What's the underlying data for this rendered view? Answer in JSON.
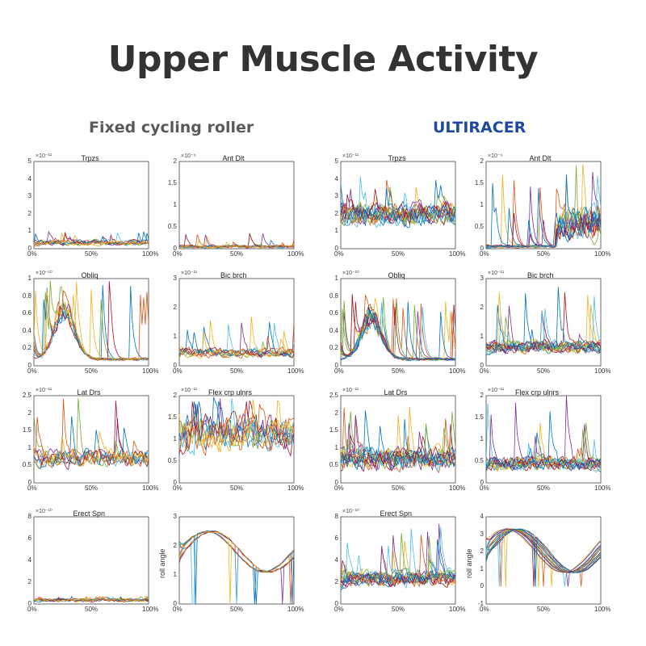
{
  "page": {
    "title": "Upper Muscle Activity",
    "left_column": "Fixed cycling roller",
    "right_column": "ULTIRACER"
  },
  "colors": {
    "title": "#333333",
    "left_header": "#5a5a5a",
    "right_header": "#1f4aa0",
    "series": [
      "#0072BD",
      "#D95319",
      "#EDB120",
      "#7E2F8E",
      "#77AC30",
      "#4DBEEE",
      "#A2142F"
    ]
  },
  "chart_data": [
    {
      "id": "fixed-trpzs",
      "type": "line",
      "title": "Trpzs",
      "exponent": "×10⁻¹¹",
      "condition": "Fixed cycling roller",
      "xlabel": "",
      "ylabel": "",
      "x_ticks": [
        "0%",
        "50%",
        "100%"
      ],
      "y_ticks": [
        "0",
        "1",
        "2",
        "3",
        "4",
        "5"
      ],
      "ylim": [
        0,
        5
      ],
      "typical_range": [
        0.1,
        0.6
      ],
      "peak": 1.1,
      "n_series": 10
    },
    {
      "id": "fixed-antdlt",
      "type": "line",
      "title": "Ant Dlt",
      "exponent": "×10⁻⁹",
      "condition": "Fixed cycling roller",
      "x_ticks": [
        "0%",
        "50%",
        "100%"
      ],
      "y_ticks": [
        "0",
        "0.5",
        "1",
        "1.5",
        "2"
      ],
      "ylim": [
        0,
        2
      ],
      "typical_range": [
        0,
        0.1
      ],
      "peak": 0.38,
      "n_series": 10
    },
    {
      "id": "ultiracer-trpzs",
      "type": "line",
      "title": "Trpzs",
      "exponent": "×10⁻¹¹",
      "condition": "ULTIRACER",
      "x_ticks": [
        "0%",
        "50%",
        "100%"
      ],
      "y_ticks": [
        "0",
        "1",
        "2",
        "3",
        "4",
        "5"
      ],
      "ylim": [
        0,
        5
      ],
      "typical_range": [
        1,
        3
      ],
      "peak": 4.2,
      "n_series": 15
    },
    {
      "id": "ultiracer-antdlt",
      "type": "line",
      "title": "Ant Dlt",
      "exponent": "×10⁻⁹",
      "condition": "ULTIRACER",
      "x_ticks": [
        "0%",
        "50%",
        "100%"
      ],
      "y_ticks": [
        "0",
        "0.5",
        "1",
        "1.5",
        "2"
      ],
      "ylim": [
        0,
        2
      ],
      "typical_range": [
        0,
        0.15
      ],
      "peak": 2.0,
      "n_series": 15
    },
    {
      "id": "fixed-obliq",
      "type": "line",
      "title": "Obliq",
      "exponent": "×10⁻¹⁰",
      "condition": "Fixed cycling roller",
      "x_ticks": [
        "0%",
        "50%",
        "100%"
      ],
      "y_ticks": [
        "0",
        "0.2",
        "0.4",
        "0.6",
        "0.8",
        "1"
      ],
      "ylim": [
        0,
        1
      ],
      "typical_range": [
        0.05,
        0.7
      ],
      "peak": 1.0,
      "n_series": 10
    },
    {
      "id": "fixed-bicbrch",
      "type": "line",
      "title": "Bic brch",
      "exponent": "×10⁻¹¹",
      "condition": "Fixed cycling roller",
      "x_ticks": [
        "0%",
        "50%",
        "100%"
      ],
      "y_ticks": [
        "0",
        "1",
        "2",
        "3"
      ],
      "ylim": [
        0,
        3
      ],
      "typical_range": [
        0.2,
        0.7
      ],
      "peak": 1.85,
      "n_series": 10
    },
    {
      "id": "ultiracer-obliq",
      "type": "line",
      "title": "Obliq",
      "exponent": "×10⁻¹⁰",
      "condition": "ULTIRACER",
      "x_ticks": [
        "0%",
        "50%",
        "100%"
      ],
      "y_ticks": [
        "0",
        "0.2",
        "0.4",
        "0.6",
        "0.8",
        "1"
      ],
      "ylim": [
        0,
        1
      ],
      "typical_range": [
        0.05,
        0.6
      ],
      "peak": 0.85,
      "n_series": 15
    },
    {
      "id": "ultiracer-bicbrch",
      "type": "line",
      "title": "Bic brch",
      "exponent": "×10⁻¹¹",
      "condition": "ULTIRACER",
      "x_ticks": [
        "0%",
        "50%",
        "100%"
      ],
      "y_ticks": [
        "0",
        "1",
        "2",
        "3"
      ],
      "ylim": [
        0,
        3
      ],
      "typical_range": [
        0.3,
        1.0
      ],
      "peak": 2.8,
      "n_series": 15
    },
    {
      "id": "fixed-latdrs",
      "type": "line",
      "title": "Lat Drs",
      "exponent": "×10⁻¹¹",
      "condition": "Fixed cycling roller",
      "x_ticks": [
        "0%",
        "50%",
        "100%"
      ],
      "y_ticks": [
        "0",
        "0.5",
        "1",
        "1.5",
        "2",
        "2.5"
      ],
      "ylim": [
        0,
        2.5
      ],
      "typical_range": [
        0.3,
        1.1
      ],
      "peak": 2.45,
      "n_series": 10
    },
    {
      "id": "fixed-flexcrpulnrs",
      "type": "line",
      "title": "Flex crp ulnrs",
      "exponent": "×10⁻¹¹",
      "condition": "Fixed cycling roller",
      "x_ticks": [
        "0%",
        "50%",
        "100%"
      ],
      "y_ticks": [
        "0",
        "0.5",
        "1",
        "1.5",
        "2"
      ],
      "ylim": [
        0,
        2
      ],
      "typical_range": [
        0.5,
        1.8
      ],
      "peak": 2.0,
      "n_series": 10
    },
    {
      "id": "ultiracer-latdrs",
      "type": "line",
      "title": "Lat Drs",
      "exponent": "×10⁻¹¹",
      "condition": "ULTIRACER",
      "x_ticks": [
        "0%",
        "50%",
        "100%"
      ],
      "y_ticks": [
        "0",
        "0.5",
        "1",
        "1.5",
        "2",
        "2.5"
      ],
      "ylim": [
        0,
        2.5
      ],
      "typical_range": [
        0.2,
        1.2
      ],
      "peak": 2.25,
      "n_series": 15
    },
    {
      "id": "ultiracer-flexcrpulnrs",
      "type": "line",
      "title": "Flex crp ulnrs",
      "exponent": "×10⁻¹¹",
      "condition": "ULTIRACER",
      "x_ticks": [
        "0%",
        "50%",
        "100%"
      ],
      "y_ticks": [
        "0",
        "0.5",
        "1",
        "1.5",
        "2"
      ],
      "ylim": [
        0,
        2
      ],
      "typical_range": [
        0.2,
        0.7
      ],
      "peak": 2.0,
      "n_series": 15
    },
    {
      "id": "fixed-erectspn",
      "type": "line",
      "title": "Erect Spn",
      "exponent": "×10⁻¹⁰",
      "condition": "Fixed cycling roller",
      "x_ticks": [
        "0%",
        "50%",
        "100%"
      ],
      "y_ticks": [
        "0",
        "2",
        "4",
        "6",
        "8"
      ],
      "ylim": [
        0,
        8
      ],
      "typical_range": [
        0.1,
        0.6
      ],
      "peak": 0.7,
      "n_series": 10
    },
    {
      "id": "fixed-rollangle",
      "type": "line",
      "title": "",
      "exponent": "",
      "condition": "Fixed cycling roller",
      "ylabel": "roll angle",
      "x_ticks": [
        "0%",
        "50%",
        "100%"
      ],
      "y_ticks": [
        "0",
        "1",
        "2",
        "3"
      ],
      "ylim": [
        0,
        3
      ],
      "typical_range": [
        1.1,
        2.5
      ],
      "peak": 2.6,
      "n_series": 10
    },
    {
      "id": "ultiracer-erectspn",
      "type": "line",
      "title": "Erect Spn",
      "exponent": "×10⁻¹⁰",
      "condition": "ULTIRACER",
      "x_ticks": [
        "0%",
        "50%",
        "100%"
      ],
      "y_ticks": [
        "0",
        "2",
        "4",
        "6",
        "8"
      ],
      "ylim": [
        0,
        8
      ],
      "typical_range": [
        1.2,
        3.5
      ],
      "peak": 7.5,
      "n_series": 15
    },
    {
      "id": "ultiracer-rollangle",
      "type": "line",
      "title": "",
      "exponent": "",
      "condition": "ULTIRACER",
      "ylabel": "roll angle",
      "x_ticks": [
        "0%",
        "50%",
        "100%"
      ],
      "y_ticks": [
        "-1",
        "0",
        "1",
        "2",
        "3",
        "4"
      ],
      "ylim": [
        -1,
        4
      ],
      "typical_range": [
        0.8,
        3.3
      ],
      "peak": 3.3,
      "n_series": 15
    }
  ]
}
